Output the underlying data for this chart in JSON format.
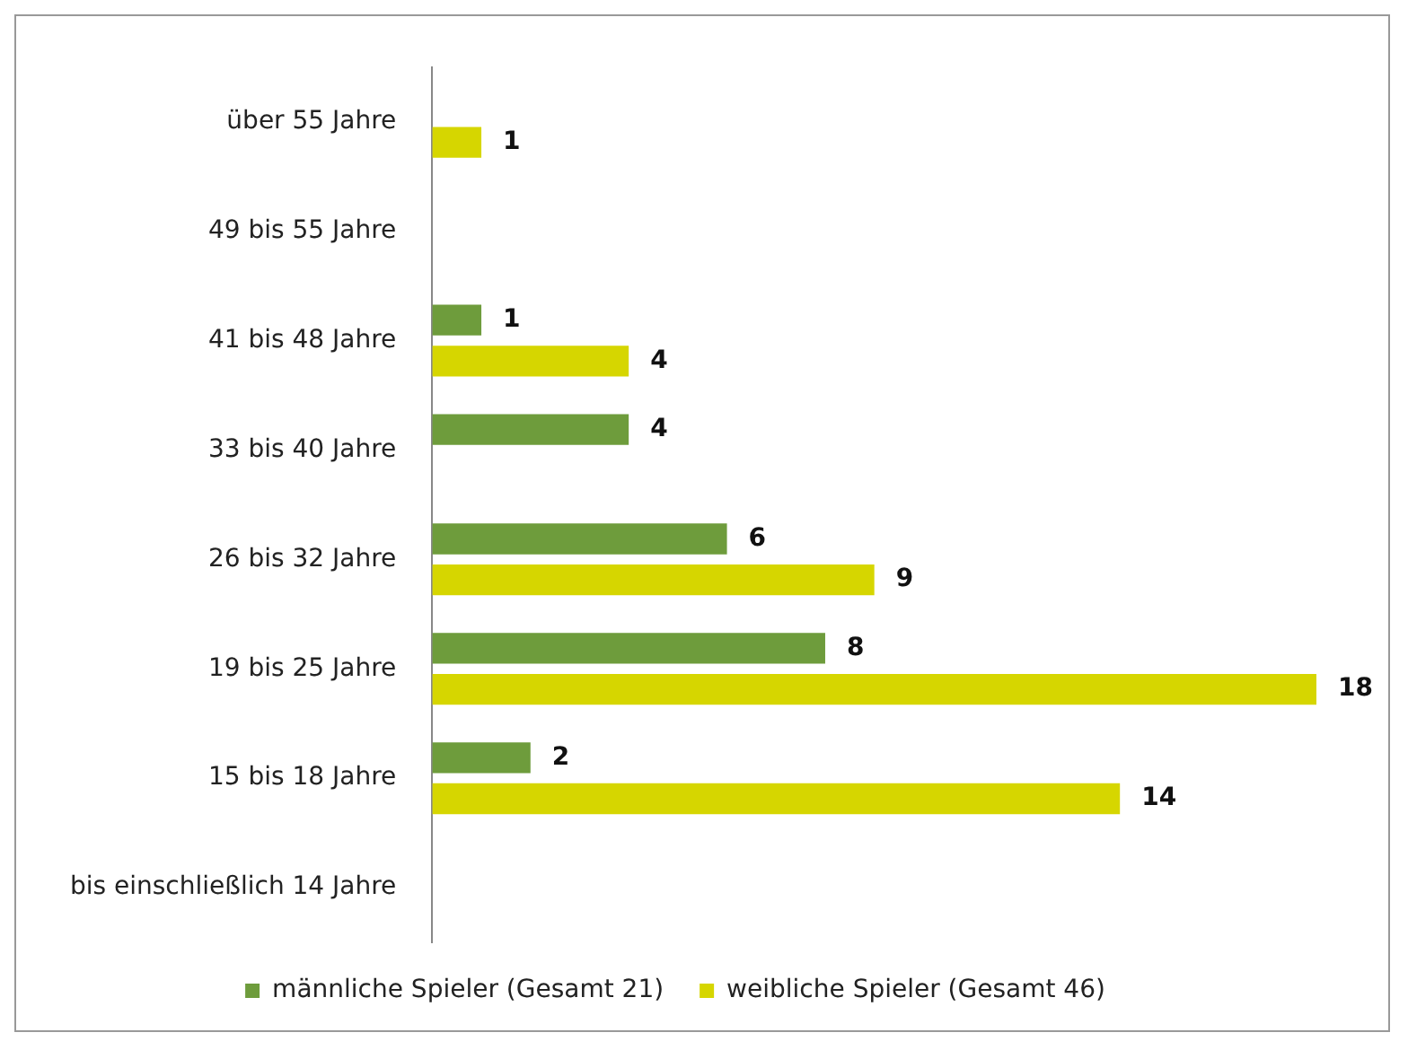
{
  "chart_data": {
    "type": "bar",
    "orientation": "horizontal",
    "categories": [
      "über 55 Jahre",
      "49 bis 55 Jahre",
      "41 bis 48 Jahre",
      "33 bis 40 Jahre",
      "26 bis 32 Jahre",
      "19 bis 25 Jahre",
      "15 bis 18 Jahre",
      "bis einschließlich 14 Jahre"
    ],
    "series": [
      {
        "name": "männliche Spieler (Gesamt 21)",
        "color": "#6e9c3c",
        "values": [
          null,
          null,
          1,
          4,
          6,
          8,
          2,
          null
        ]
      },
      {
        "name": "weibliche Spieler (Gesamt 46)",
        "color": "#d6d600",
        "values": [
          1,
          null,
          4,
          null,
          9,
          18,
          14,
          null
        ]
      }
    ],
    "data_labels": true,
    "legend": "bottom",
    "grid": false
  }
}
